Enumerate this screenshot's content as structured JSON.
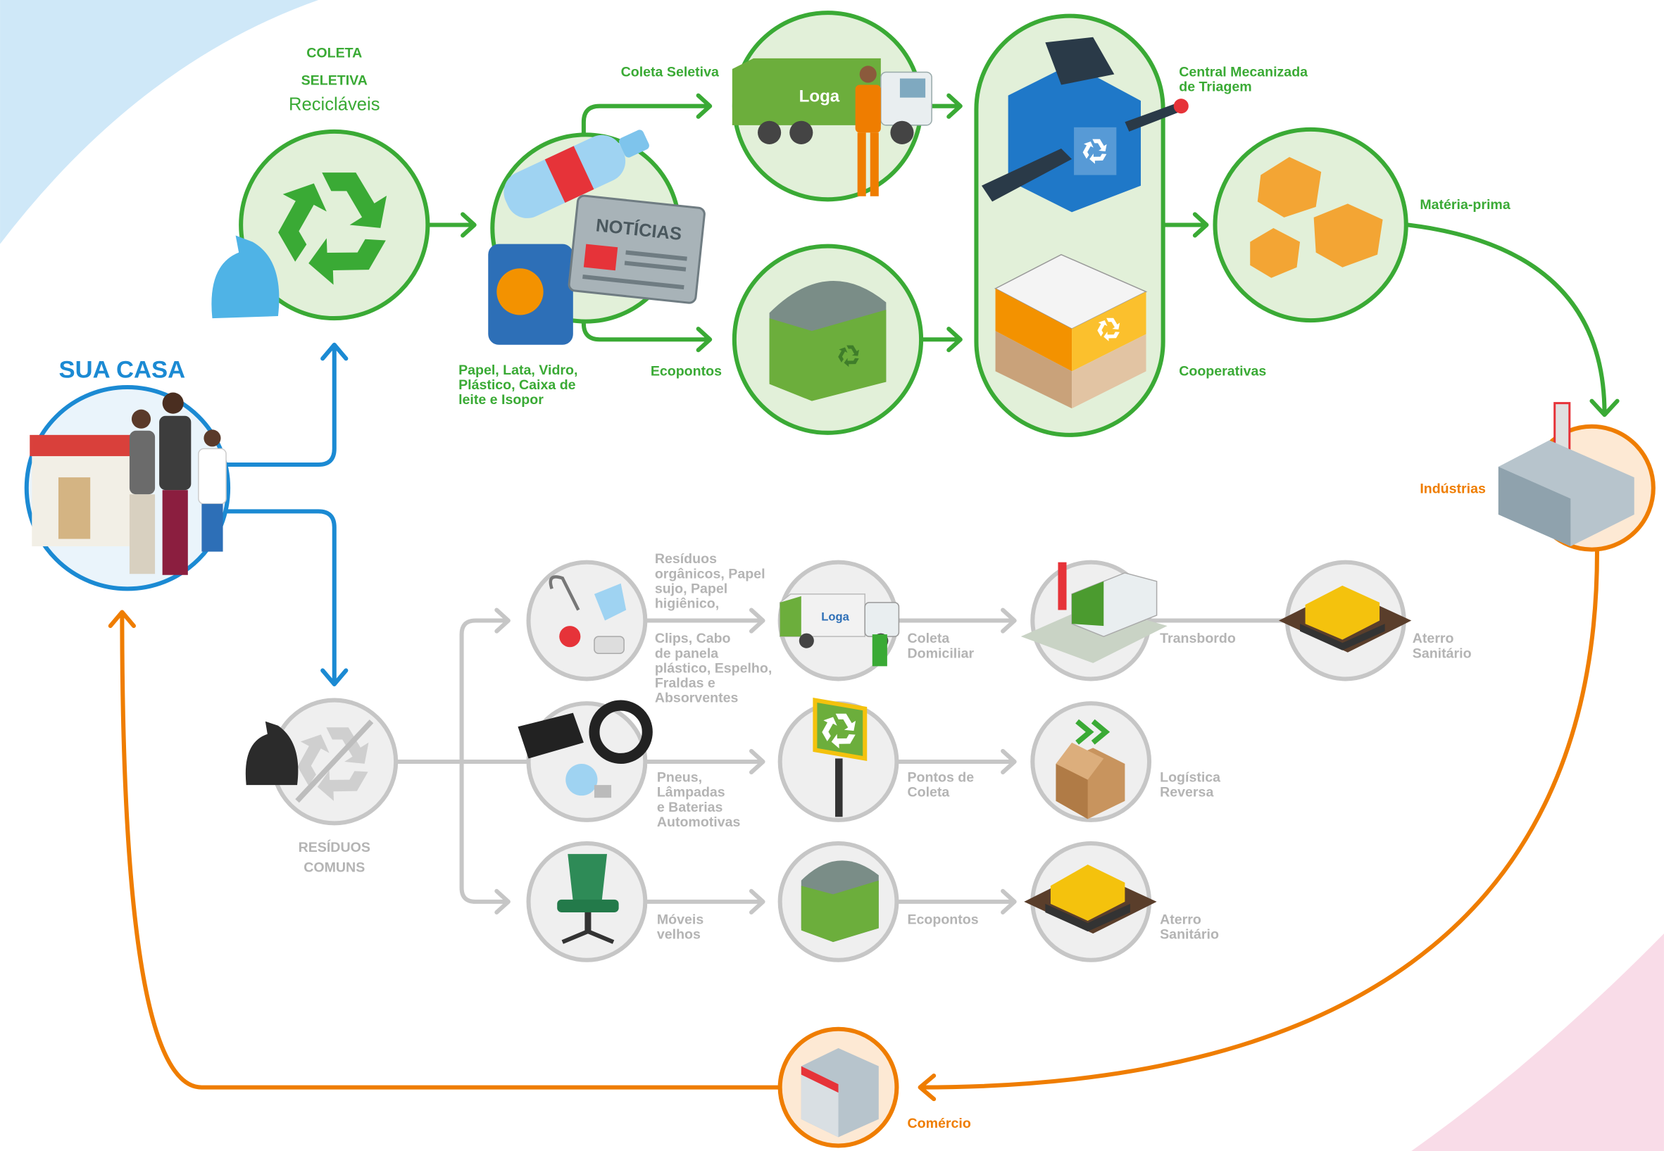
{
  "coleta_seletiva": {
    "title": [
      "COLETA",
      "SELETIVA"
    ],
    "subtitle": "Recicláveis"
  },
  "sua_casa": "SUA CASA",
  "reciclaveis": [
    "Papel, Lata, Vidro,",
    "Plástico, Caixa de",
    "leite e Isopor"
  ],
  "newspaper": "NOTÍCIAS",
  "truck_logo": "Loga",
  "coleta_seletiva_label": "Coleta Seletiva",
  "ecopontos_green": "Ecopontos",
  "central": [
    "Central Mecanizada",
    "de Triagem"
  ],
  "cooperativas": "Cooperativas",
  "materia_prima": "Matéria-prima",
  "industrias": "Indústrias",
  "comercio": "Comércio",
  "residuos_comuns": [
    "RESÍDUOS",
    "COMUNS"
  ],
  "row1": {
    "items_a": [
      "Resíduos",
      "orgânicos, Papel",
      "sujo, Papel",
      "higiênico,"
    ],
    "items_b": [
      "Clips, Cabo",
      "de panela",
      "plástico, Espelho,",
      "Fraldas e",
      "Absorventes"
    ],
    "step1": [
      "Coleta",
      "Domiciliar"
    ],
    "step2": [
      "Transbordo"
    ],
    "step3": [
      "Aterro",
      "Sanitário"
    ],
    "truck_logo": "Loga"
  },
  "row2": {
    "items": [
      "Pneus,",
      "Lâmpadas",
      "e Baterias",
      "Automotivas"
    ],
    "step1": [
      "Pontos de",
      "Coleta"
    ],
    "step2": [
      "Logística",
      "Reversa"
    ]
  },
  "row3": {
    "items": [
      "Móveis",
      "velhos"
    ],
    "step1": [
      "Ecopontos"
    ],
    "step2": [
      "Aterro",
      "Sanitário"
    ]
  }
}
